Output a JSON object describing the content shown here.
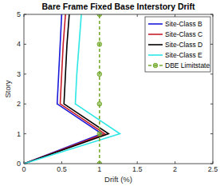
{
  "chart_data": {
    "type": "line",
    "title": "Bare Frame Fixed Base Interstory Drift",
    "x_label": "Drift (%)",
    "y_label": "Story",
    "y": [
      0,
      1,
      2,
      3,
      4,
      5
    ],
    "series": [
      {
        "name": "Site-Class B",
        "color": "#1a1adb",
        "values": [
          0,
          1.03,
          0.44,
          0.46,
          0.48,
          0.5
        ]
      },
      {
        "name": "Site-Class C",
        "color": "#c81e2a",
        "values": [
          0,
          1.07,
          0.48,
          0.5,
          0.52,
          0.55
        ]
      },
      {
        "name": "Site-Class D",
        "color": "#000000",
        "values": [
          0,
          1.12,
          0.53,
          0.55,
          0.57,
          0.6
        ]
      },
      {
        "name": "Site-Class E",
        "color": "#2ee6e6",
        "values": [
          0,
          1.27,
          0.68,
          0.7,
          0.73,
          0.76
        ]
      },
      {
        "name": "DBE Limitstate",
        "color": "#77ac30",
        "values": [
          1,
          1,
          1,
          1,
          1,
          1
        ],
        "line_style": "dashed",
        "marker": "circle"
      }
    ],
    "xlim": [
      0,
      2.5
    ],
    "xticks": [
      0,
      0.5,
      1,
      1.5,
      2,
      2.5
    ],
    "ylim": [
      0,
      5
    ],
    "yticks": [
      0,
      1,
      2,
      3,
      4,
      5
    ],
    "grid": false,
    "legend": "top-right"
  }
}
